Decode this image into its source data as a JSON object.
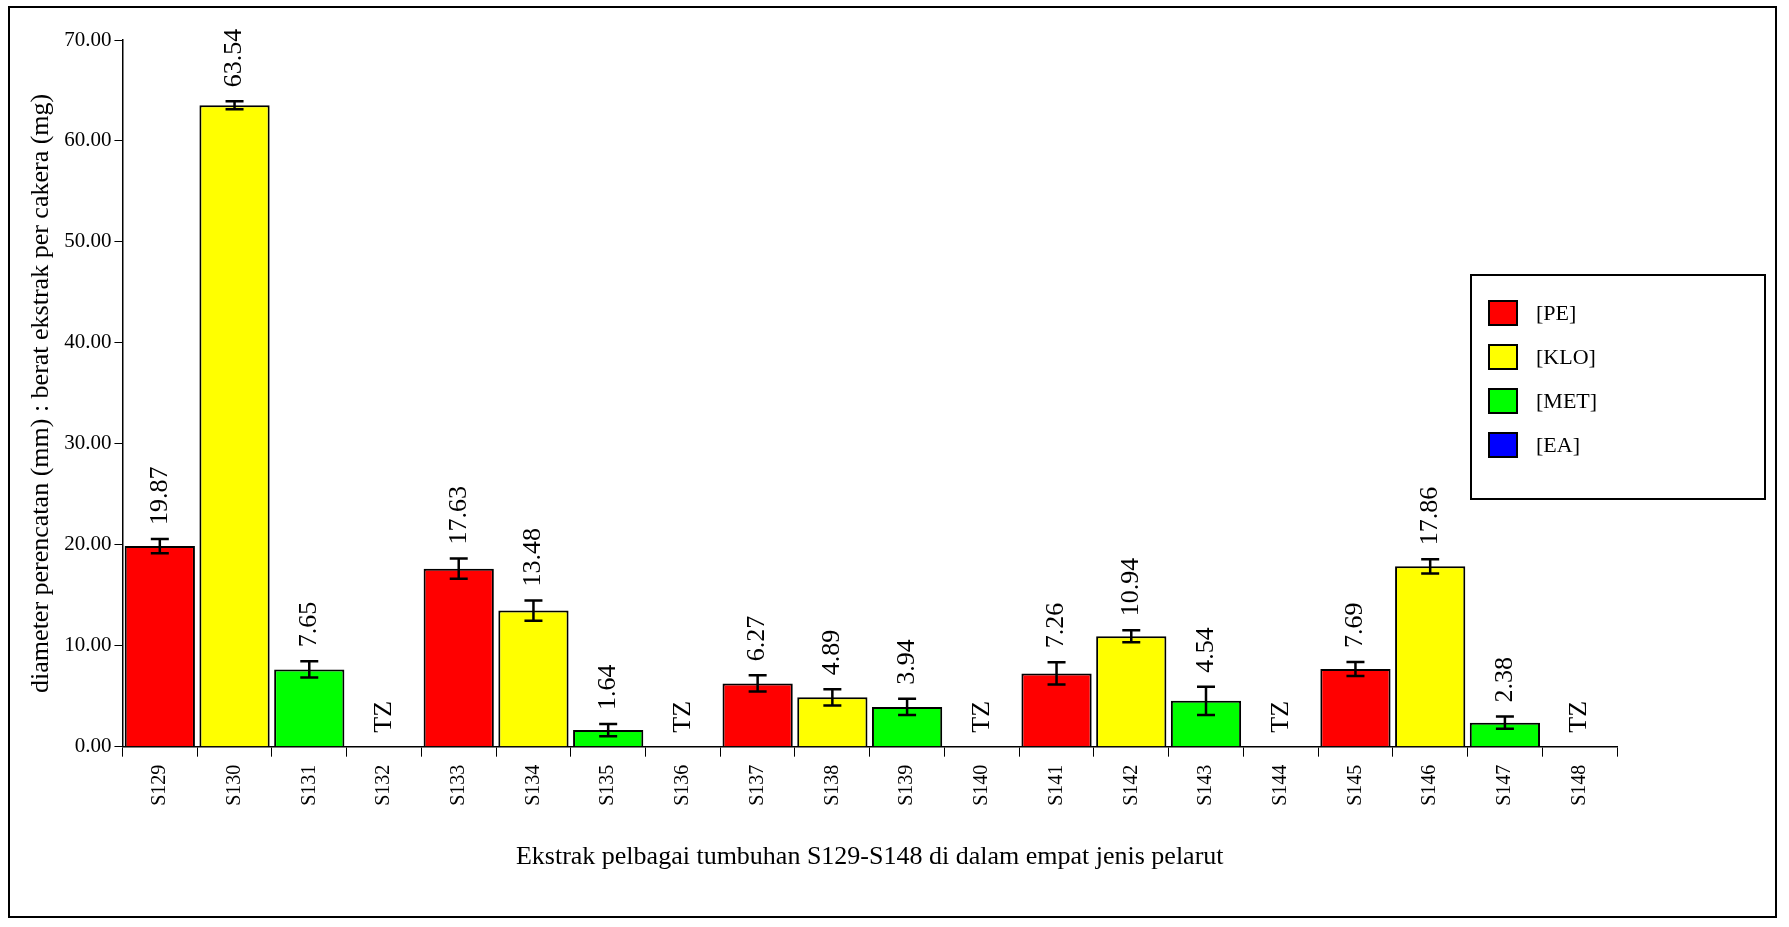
{
  "chart_data": {
    "type": "bar",
    "xlabel": "Ekstrak pelbagai tumbuhan S129-S148 di dalam empat jenis pelarut",
    "ylabel": "diameter perencatan (mm) : berat ekstrak per cakera (mg)",
    "categories": [
      "S129",
      "S130",
      "S131",
      "S132",
      "S133",
      "S134",
      "S135",
      "S136",
      "S137",
      "S138",
      "S139",
      "S140",
      "S141",
      "S142",
      "S143",
      "S144",
      "S145",
      "S146",
      "S147",
      "S148"
    ],
    "series": [
      {
        "name": "[PE]",
        "color": "#ff0000",
        "values": [
          19.87,
          null,
          null,
          null,
          17.63,
          null,
          null,
          null,
          6.27,
          null,
          null,
          null,
          7.26,
          null,
          null,
          null,
          7.69,
          null,
          null,
          null
        ],
        "errors": [
          0.7,
          null,
          null,
          null,
          1.0,
          null,
          null,
          null,
          0.8,
          null,
          null,
          null,
          1.1,
          null,
          null,
          null,
          0.7,
          null,
          null,
          null
        ],
        "value_labels": [
          "19.87",
          null,
          null,
          null,
          "17.63",
          null,
          null,
          null,
          "6.27",
          null,
          null,
          null,
          "7.26",
          null,
          null,
          null,
          "7.69",
          null,
          null,
          null
        ]
      },
      {
        "name": "[KLO]",
        "color": "#ffff00",
        "values": [
          null,
          63.54,
          null,
          null,
          null,
          13.48,
          null,
          null,
          null,
          4.89,
          null,
          null,
          null,
          10.94,
          null,
          null,
          null,
          17.86,
          null,
          null
        ],
        "errors": [
          null,
          0.4,
          null,
          null,
          null,
          1.0,
          null,
          null,
          null,
          0.8,
          null,
          null,
          null,
          0.6,
          null,
          null,
          null,
          0.7,
          null,
          null
        ],
        "value_labels": [
          null,
          "63.54",
          null,
          null,
          null,
          "13.48",
          null,
          null,
          null,
          "4.89",
          null,
          null,
          null,
          "10.94",
          null,
          null,
          null,
          "17.86",
          null,
          null
        ]
      },
      {
        "name": "[MET]",
        "color": "#00ff00",
        "values": [
          null,
          null,
          7.65,
          null,
          null,
          null,
          1.64,
          null,
          null,
          null,
          3.94,
          null,
          null,
          null,
          4.54,
          null,
          null,
          null,
          2.38,
          null
        ],
        "errors": [
          null,
          null,
          0.8,
          null,
          null,
          null,
          0.6,
          null,
          null,
          null,
          0.8,
          null,
          null,
          null,
          1.4,
          null,
          null,
          null,
          0.6,
          null
        ],
        "value_labels": [
          null,
          null,
          "7.65",
          null,
          null,
          null,
          "1.64",
          null,
          null,
          null,
          "3.94",
          null,
          null,
          null,
          "4.54",
          null,
          null,
          null,
          "2.38",
          null
        ]
      },
      {
        "name": "[EA]",
        "color": "#0000ff",
        "values": [
          null,
          null,
          null,
          null,
          null,
          null,
          null,
          null,
          null,
          null,
          null,
          null,
          null,
          null,
          null,
          null,
          null,
          null,
          null,
          null
        ],
        "value_labels": [
          null,
          null,
          null,
          "TZ",
          null,
          null,
          null,
          "TZ",
          null,
          null,
          null,
          "TZ",
          null,
          null,
          null,
          "TZ",
          null,
          null,
          null,
          "TZ"
        ]
      }
    ],
    "ylim": [
      0,
      70
    ],
    "yticks": [
      {
        "value": 0,
        "label": "0.00"
      },
      {
        "value": 10,
        "label": "10.00"
      },
      {
        "value": 20,
        "label": "20.00"
      },
      {
        "value": 30,
        "label": "30.00"
      },
      {
        "value": 40,
        "label": "40.00"
      },
      {
        "value": 50,
        "label": "50.00"
      },
      {
        "value": 60,
        "label": "60.00"
      },
      {
        "value": 70,
        "label": "70.00"
      }
    ],
    "grid": false,
    "legend": "right"
  }
}
